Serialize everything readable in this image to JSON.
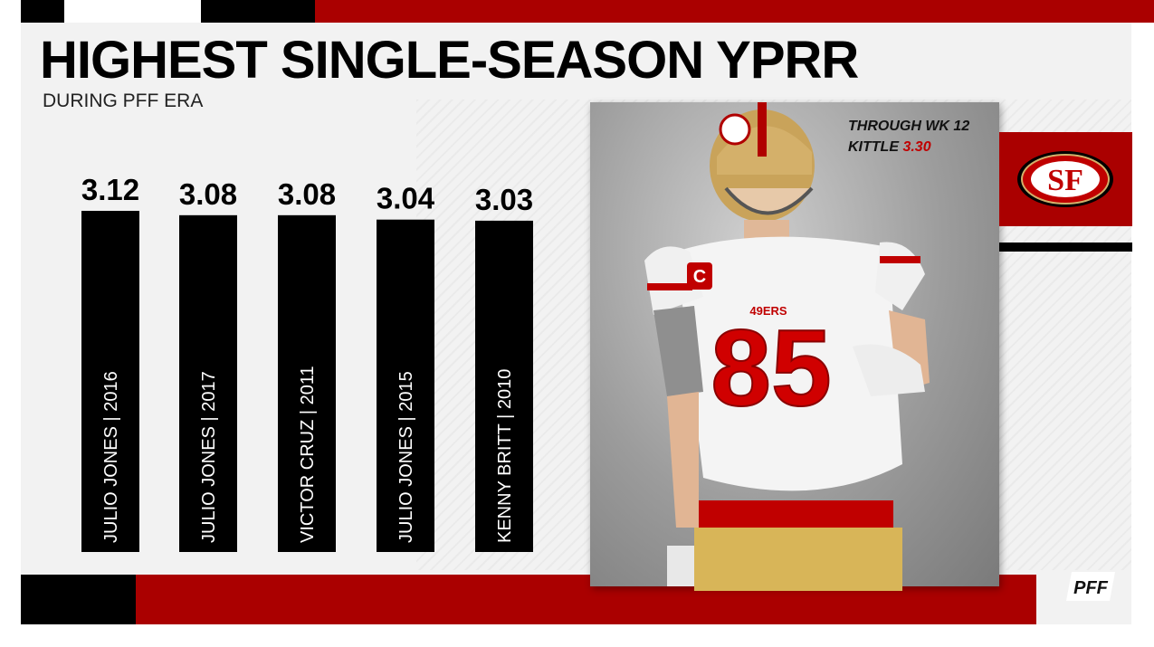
{
  "header": {
    "title": "HIGHEST SINGLE-SEASON YPRR",
    "subtitle": "DURING PFF ERA"
  },
  "note": {
    "line1": "THROUGH WK 12",
    "line2_prefix": "KITTLE",
    "line2_value": "3.30"
  },
  "logo": {
    "text": "SF",
    "brand": "PFF"
  },
  "photo": {
    "jersey_number": "85",
    "patch_text": "C",
    "chest_text": "49ERS"
  },
  "colors": {
    "red": "#aa0000",
    "accent_red": "#c00000",
    "black": "#000000",
    "gold": "#d8b558"
  },
  "chart_data": {
    "type": "bar",
    "title": "HIGHEST SINGLE-SEASON YPRR",
    "subtitle": "DURING PFF ERA",
    "categories": [
      "JULIO JONES | 2016",
      "JULIO JONES | 2017",
      "VICTOR CRUZ | 2011",
      "JULIO JONES | 2015",
      "KENNY BRITT | 2010"
    ],
    "values": [
      3.12,
      3.08,
      3.08,
      3.04,
      3.03
    ],
    "value_labels": [
      "3.12",
      "3.08",
      "3.08",
      "3.04",
      "3.03"
    ],
    "grid": false,
    "legend": "none"
  }
}
